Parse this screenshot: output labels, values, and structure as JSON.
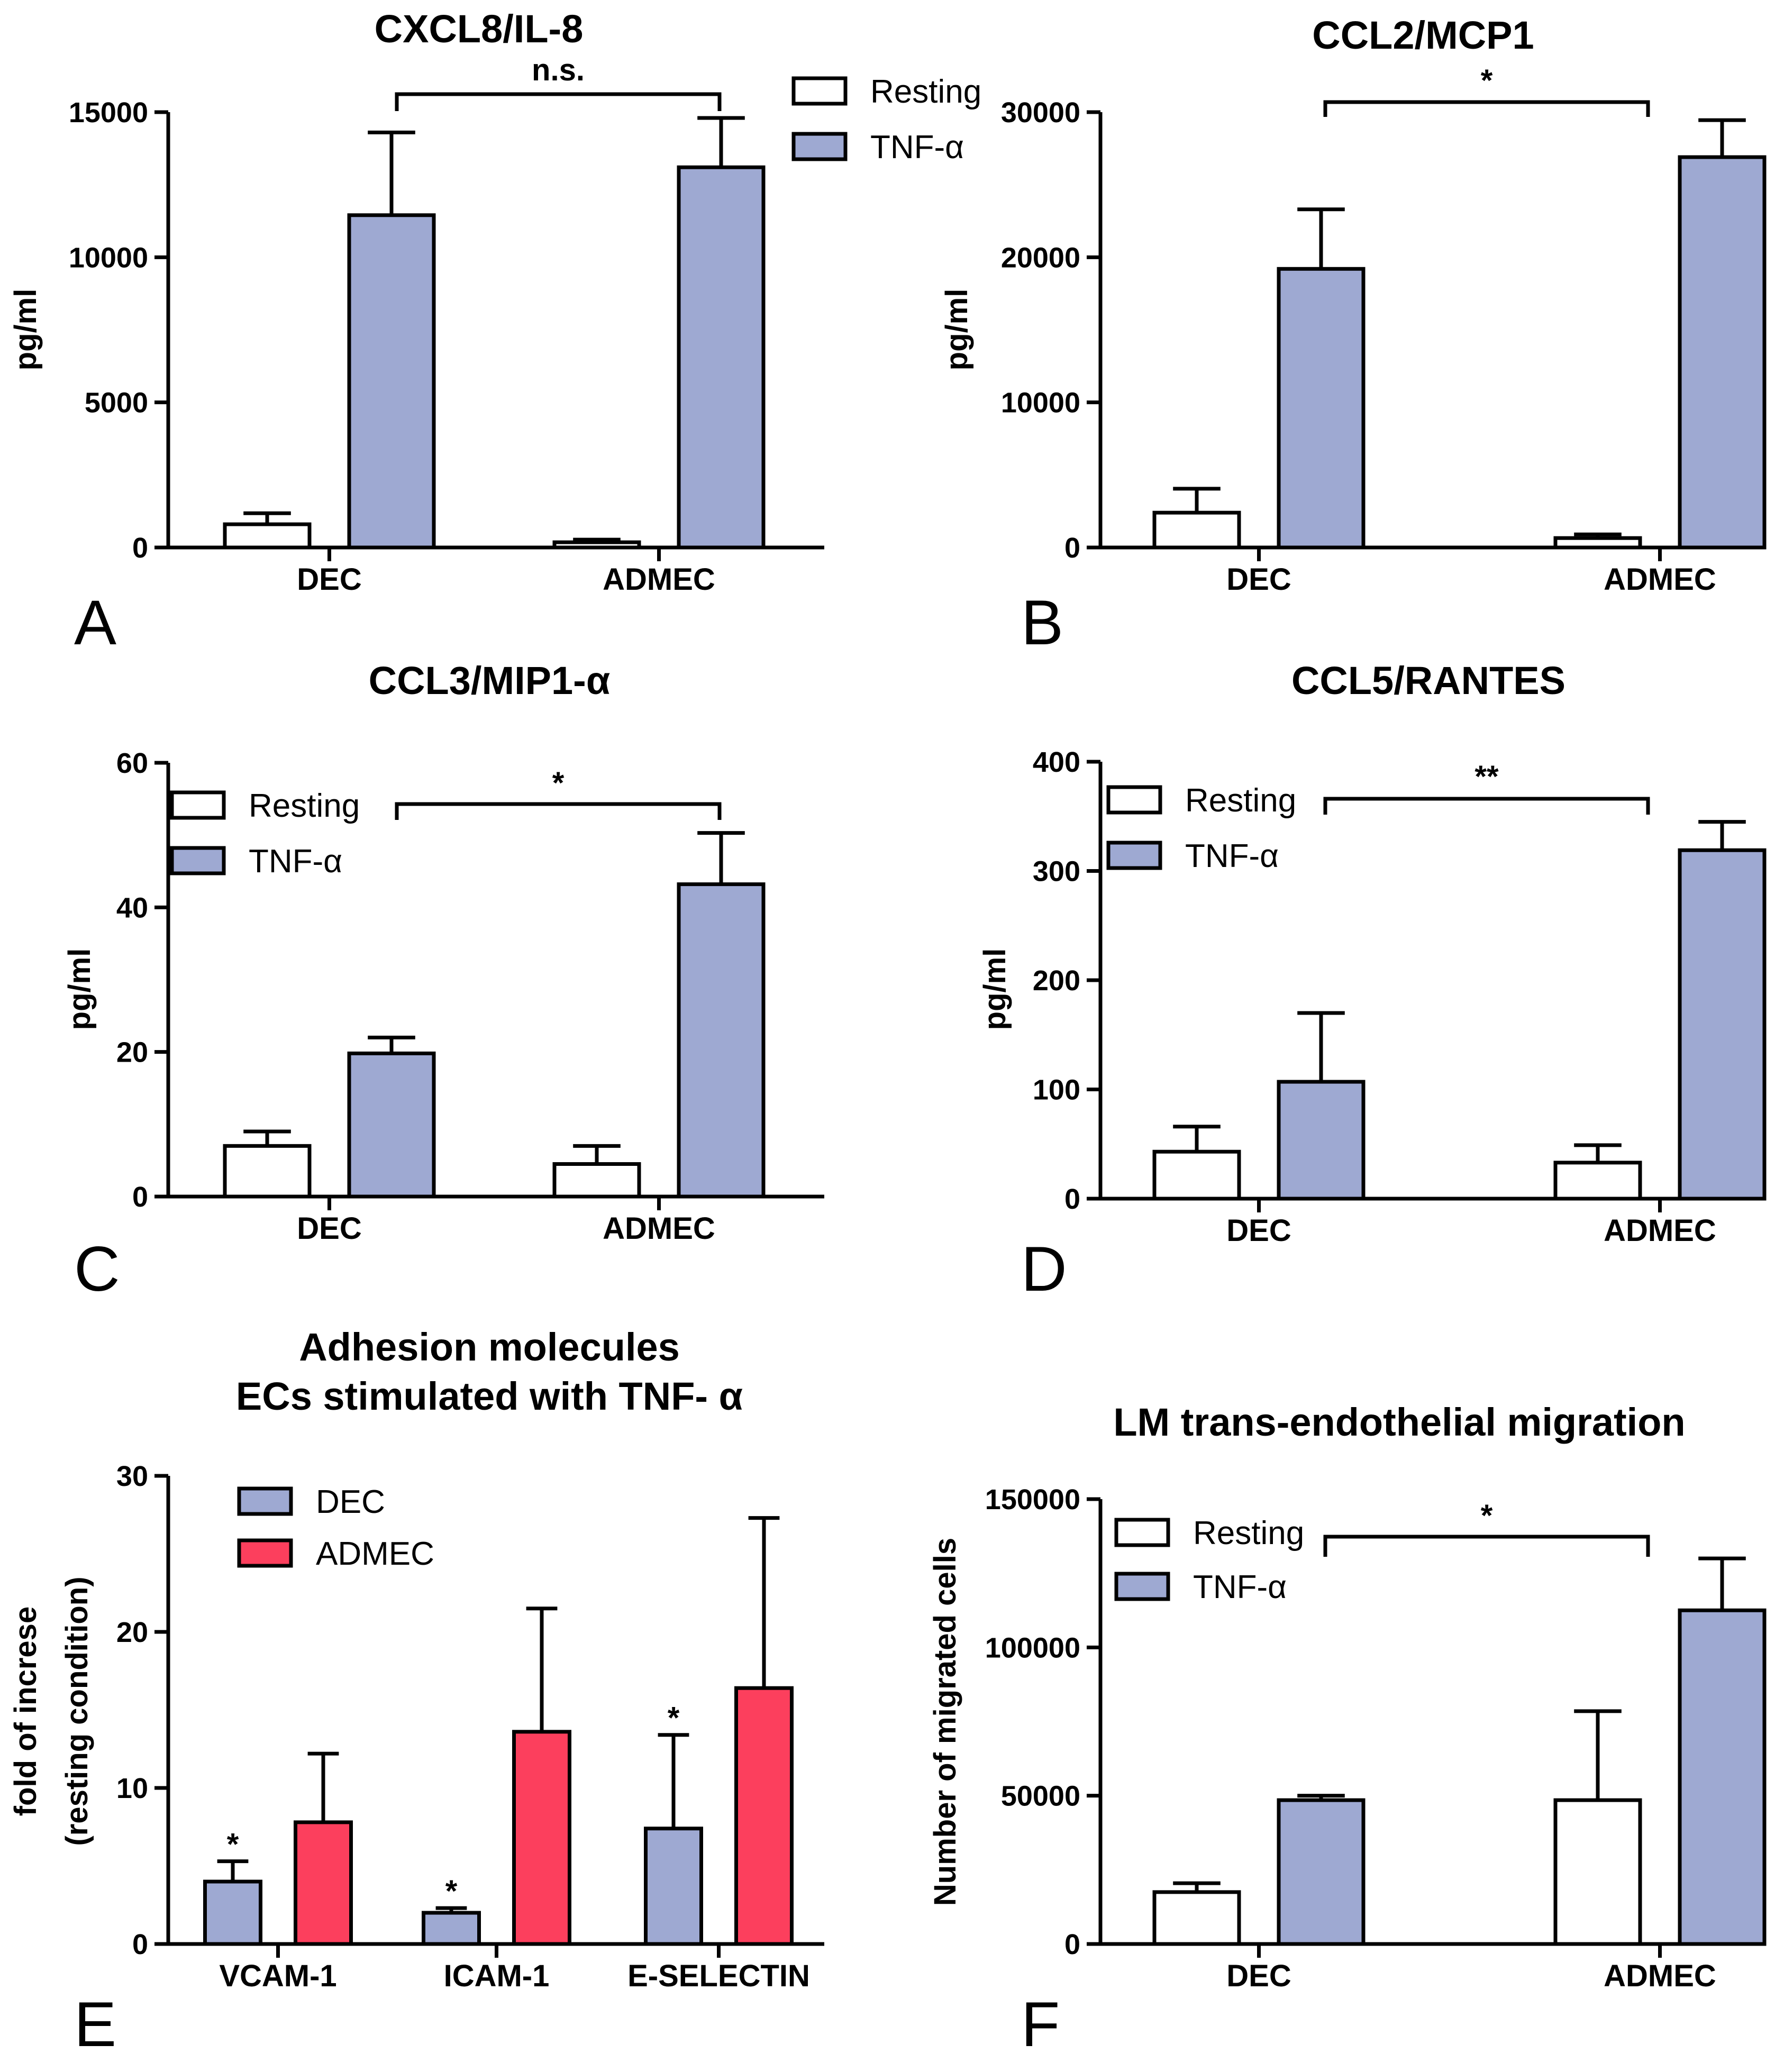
{
  "chart_data": [
    {
      "panel": "A",
      "type": "bar",
      "title": "CXCL8/IL-8",
      "ylabel": "pg/ml",
      "xlabel": "",
      "categories": [
        "DEC",
        "ADMEC"
      ],
      "ylim": [
        0,
        15000
      ],
      "yticks": [
        "0",
        "5000",
        "10000",
        "15000"
      ],
      "legend_position": "top-right",
      "series": [
        {
          "name": "Resting",
          "color": "#ffffff",
          "values": [
            800,
            180
          ],
          "errors": [
            380,
            90
          ]
        },
        {
          "name": "TNF-α",
          "color": "#9ea9d2",
          "values": [
            11450,
            13100
          ],
          "errors": [
            2850,
            1700
          ]
        }
      ],
      "significance": {
        "label": "n.s.",
        "from": [
          0,
          1
        ],
        "to": [
          1,
          1
        ]
      }
    },
    {
      "panel": "B",
      "type": "bar",
      "title": "CCL2/MCP1",
      "ylabel": "pg/ml",
      "xlabel": "",
      "categories": [
        "DEC",
        "ADMEC"
      ],
      "ylim": [
        0,
        30000
      ],
      "yticks": [
        "0",
        "10000",
        "20000",
        "30000"
      ],
      "legend_position": "none",
      "series": [
        {
          "name": "Resting",
          "color": "#ffffff",
          "values": [
            2400,
            650
          ],
          "errors": [
            1650,
            250
          ]
        },
        {
          "name": "TNF-α",
          "color": "#9ea9d2",
          "values": [
            19200,
            26900
          ],
          "errors": [
            4100,
            2550
          ]
        }
      ],
      "significance": {
        "label": "*",
        "from": [
          0,
          1
        ],
        "to": [
          1,
          1
        ]
      }
    },
    {
      "panel": "C",
      "type": "bar",
      "title": "CCL3/MIP1-α",
      "ylabel": "pg/ml",
      "xlabel": "",
      "categories": [
        "DEC",
        "ADMEC"
      ],
      "ylim": [
        0,
        60
      ],
      "yticks": [
        "0",
        "20",
        "40",
        "60"
      ],
      "legend_position": "top-left",
      "series": [
        {
          "name": "Resting",
          "color": "#ffffff",
          "values": [
            7,
            4.5
          ],
          "errors": [
            2,
            2.5
          ]
        },
        {
          "name": "TNF-α",
          "color": "#9ea9d2",
          "values": [
            19.8,
            43.2
          ],
          "errors": [
            2.2,
            7.1
          ]
        }
      ],
      "significance": {
        "label": "*",
        "from": [
          0,
          1
        ],
        "to": [
          1,
          1
        ]
      }
    },
    {
      "panel": "D",
      "type": "bar",
      "title": "CCL5/RANTES",
      "ylabel": "pg/ml",
      "xlabel": "",
      "categories": [
        "DEC",
        "ADMEC"
      ],
      "ylim": [
        0,
        400
      ],
      "yticks": [
        "0",
        "100",
        "200",
        "300",
        "400"
      ],
      "legend_position": "top-left",
      "series": [
        {
          "name": "Resting",
          "color": "#ffffff",
          "values": [
            43,
            33
          ],
          "errors": [
            23,
            16
          ]
        },
        {
          "name": "TNF-α",
          "color": "#9ea9d2",
          "values": [
            107,
            319
          ],
          "errors": [
            63,
            26
          ]
        }
      ],
      "significance": {
        "label": "**",
        "from": [
          0,
          1
        ],
        "to": [
          1,
          1
        ]
      }
    },
    {
      "panel": "E",
      "type": "bar",
      "title": "Adhesion molecules",
      "subtitle": "ECs stimulated with TNF- α",
      "ylabel": "fold of increse",
      "ylabel2": "(resting condition)",
      "xlabel": "",
      "categories": [
        "VCAM-1",
        "ICAM-1",
        "E-SELECTIN"
      ],
      "ylim": [
        0,
        30
      ],
      "yticks": [
        "0",
        "10",
        "20",
        "30"
      ],
      "legend_position": "top-left",
      "series": [
        {
          "name": "DEC",
          "color": "#9ea9d2",
          "values": [
            4,
            2,
            7.4
          ],
          "errors": [
            1.3,
            0.3,
            6
          ],
          "marks": [
            "*",
            "*",
            "*"
          ]
        },
        {
          "name": "ADMEC",
          "color": "#fc3f5d",
          "values": [
            7.8,
            13.6,
            16.4
          ],
          "errors": [
            4.4,
            7.9,
            10.9
          ]
        }
      ]
    },
    {
      "panel": "F",
      "type": "bar",
      "title": "LM trans-endothelial migration",
      "ylabel": "Number of migrated cells",
      "xlabel": "",
      "categories": [
        "DEC",
        "ADMEC"
      ],
      "ylim": [
        0,
        150000
      ],
      "yticks": [
        "0",
        "50000",
        "100000",
        "150000"
      ],
      "legend_position": "top-left",
      "series": [
        {
          "name": "Resting",
          "color": "#ffffff",
          "values": [
            17500,
            48500
          ],
          "errors": [
            3000,
            30000
          ]
        },
        {
          "name": "TNF-α",
          "color": "#9ea9d2",
          "values": [
            48500,
            112500
          ],
          "errors": [
            1500,
            17500
          ]
        }
      ],
      "significance": {
        "label": "*",
        "from": [
          0,
          1
        ],
        "to": [
          1,
          1
        ]
      }
    }
  ]
}
